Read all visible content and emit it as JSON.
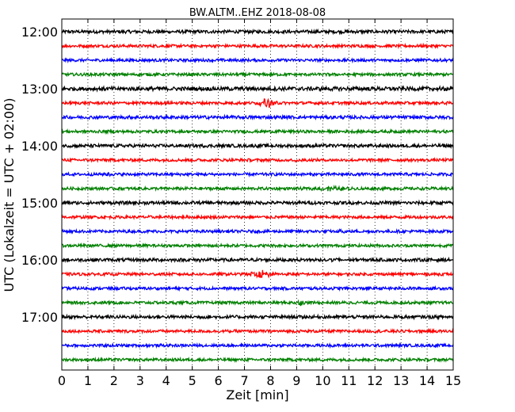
{
  "chart_data": {
    "type": "line",
    "title": "BW.ALTM..EHZ 2018-08-08",
    "xlabel": "Zeit  [min]",
    "ylabel": "UTC (Lokalzeit = UTC + 02:00)",
    "xlim": [
      0,
      15
    ],
    "x_ticks": [
      "0",
      "1",
      "2",
      "3",
      "4",
      "5",
      "6",
      "7",
      "8",
      "9",
      "10",
      "11",
      "12",
      "13",
      "14",
      "15"
    ],
    "y_tick_labels": [
      "12:00",
      "13:00",
      "14:00",
      "15:00",
      "16:00",
      "17:00"
    ],
    "grid": "vertical-dotted",
    "trace_colors": [
      "#000000",
      "#ff0000",
      "#0000ff",
      "#008000"
    ],
    "traces": [
      {
        "start": "12:00",
        "noise": 0.25,
        "events": []
      },
      {
        "start": "12:15",
        "noise": 0.22,
        "events": []
      },
      {
        "start": "12:30",
        "noise": 0.22,
        "events": []
      },
      {
        "start": "12:45",
        "noise": 0.22,
        "events": []
      },
      {
        "start": "13:00",
        "noise": 0.3,
        "events": [
          {
            "t": 14.55,
            "amp": 0.55,
            "dur": 0.12
          }
        ]
      },
      {
        "start": "13:15",
        "noise": 0.22,
        "events": [
          {
            "t": 7.85,
            "amp": 1.1,
            "dur": 0.45
          }
        ]
      },
      {
        "start": "13:30",
        "noise": 0.25,
        "events": []
      },
      {
        "start": "13:45",
        "noise": 0.22,
        "events": []
      },
      {
        "start": "14:00",
        "noise": 0.25,
        "events": []
      },
      {
        "start": "14:15",
        "noise": 0.22,
        "events": [
          {
            "t": 9.0,
            "amp": 0.3,
            "dur": 0.3
          }
        ]
      },
      {
        "start": "14:30",
        "noise": 0.22,
        "events": [
          {
            "t": 1.8,
            "amp": 0.3,
            "dur": 0.2
          }
        ]
      },
      {
        "start": "14:45",
        "noise": 0.22,
        "events": [
          {
            "t": 10.3,
            "amp": 0.35,
            "dur": 1.4
          }
        ]
      },
      {
        "start": "15:00",
        "noise": 0.25,
        "events": [
          {
            "t": 0.1,
            "amp": 0.4,
            "dur": 0.15
          }
        ]
      },
      {
        "start": "15:15",
        "noise": 0.22,
        "events": []
      },
      {
        "start": "15:30",
        "noise": 0.22,
        "events": [
          {
            "t": 10.7,
            "amp": 0.25,
            "dur": 0.2
          }
        ]
      },
      {
        "start": "15:45",
        "noise": 0.22,
        "events": []
      },
      {
        "start": "16:00",
        "noise": 0.25,
        "events": [
          {
            "t": 10.4,
            "amp": 0.45,
            "dur": 0.35
          },
          {
            "t": 5.3,
            "amp": 0.3,
            "dur": 0.1
          }
        ]
      },
      {
        "start": "16:15",
        "noise": 0.22,
        "events": [
          {
            "t": 7.6,
            "amp": 0.9,
            "dur": 0.7
          }
        ]
      },
      {
        "start": "16:30",
        "noise": 0.22,
        "events": []
      },
      {
        "start": "16:45",
        "noise": 0.22,
        "events": [
          {
            "t": 9.15,
            "amp": 0.5,
            "dur": 0.2
          }
        ]
      },
      {
        "start": "17:00",
        "noise": 0.25,
        "events": []
      },
      {
        "start": "17:15",
        "noise": 0.22,
        "events": []
      },
      {
        "start": "17:30",
        "noise": 0.22,
        "events": []
      },
      {
        "start": "17:45",
        "noise": 0.22,
        "events": []
      }
    ]
  }
}
